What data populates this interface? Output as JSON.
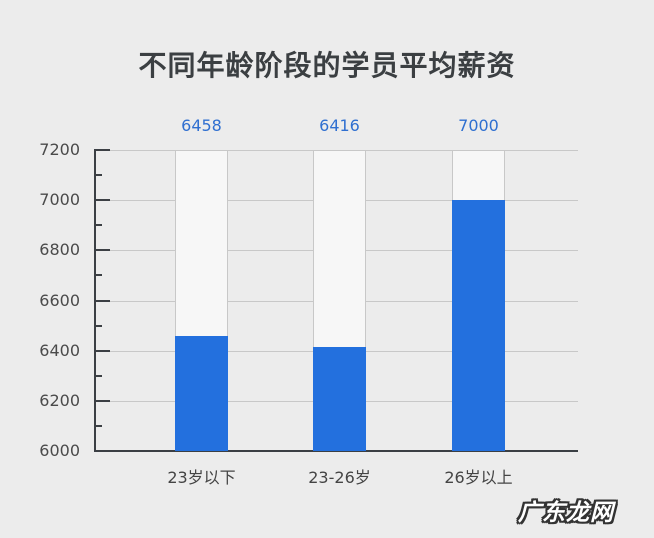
{
  "title": "不同年龄阶段的学员平均薪资",
  "watermark": "广东龙网",
  "colors": {
    "bar": "#2370de",
    "bar_background": "#f7f7f7",
    "value_label": "#2f6fd0",
    "background": "#ececec"
  },
  "y_ticks": [
    "7200",
    "7000",
    "6800",
    "6600",
    "6400",
    "6200",
    "6000"
  ],
  "bars": [
    {
      "category": "23岁以下",
      "value": 6458,
      "value_label": "6458"
    },
    {
      "category": "23-26岁",
      "value": 6416,
      "value_label": "6416"
    },
    {
      "category": "26岁以上",
      "value": 7000,
      "value_label": "7000"
    }
  ],
  "chart_data": {
    "type": "bar",
    "title": "不同年龄阶段的学员平均薪资",
    "categories": [
      "23岁以下",
      "23-26岁",
      "26岁以上"
    ],
    "values": [
      6458,
      6416,
      7000
    ],
    "xlabel": "",
    "ylabel": "",
    "ylim": [
      6000,
      7200
    ],
    "yticks": [
      6000,
      6200,
      6400,
      6600,
      6800,
      7000,
      7200
    ],
    "grid": true,
    "legend": null,
    "data_labels": true,
    "notes": "Each bar drawn over a light full-height background track reaching 7200"
  }
}
